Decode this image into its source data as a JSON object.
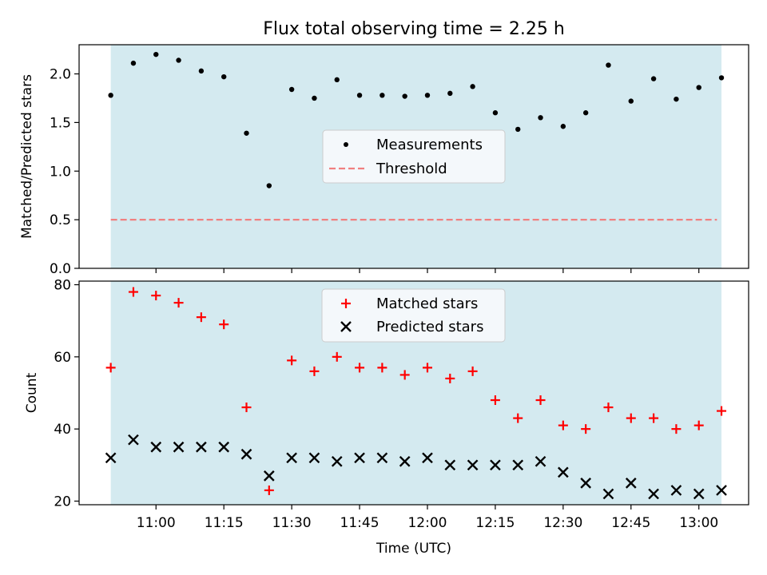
{
  "chart_data": [
    {
      "type": "scatter",
      "title": "Flux total observing time = 2.25 h",
      "ylabel": "Matched/Predicted stars",
      "xlabel": "",
      "ylim": [
        0,
        2.3
      ],
      "yticks": [
        0.0,
        0.5,
        1.0,
        1.5,
        2.0
      ],
      "ytick_labels": [
        "0.0",
        "0.5",
        "1.0",
        "1.5",
        "2.0"
      ],
      "xlim": [
        "10:43",
        "13:11"
      ],
      "xticks": [
        "11:00",
        "11:15",
        "11:30",
        "11:45",
        "12:00",
        "12:15",
        "12:30",
        "12:45",
        "13:00"
      ],
      "observing_window": [
        "10:50",
        "13:05"
      ],
      "legend_position": "center",
      "threshold": {
        "name": "Threshold",
        "value": 0.5,
        "color": "#f08080",
        "x_range": [
          "10:50",
          "13:04"
        ]
      },
      "series": [
        {
          "name": "Measurements",
          "color": "#000000",
          "marker": "dot",
          "x": [
            "10:50",
            "10:55",
            "11:00",
            "11:05",
            "11:10",
            "11:15",
            "11:20",
            "11:25",
            "11:30",
            "11:35",
            "11:40",
            "11:45",
            "11:50",
            "11:55",
            "12:00",
            "12:05",
            "12:10",
            "12:15",
            "12:20",
            "12:25",
            "12:30",
            "12:35",
            "12:40",
            "12:45",
            "12:50",
            "12:55",
            "13:00",
            "13:05"
          ],
          "y": [
            1.78,
            2.11,
            2.2,
            2.14,
            2.03,
            1.97,
            1.39,
            0.85,
            1.84,
            1.75,
            1.94,
            1.78,
            1.78,
            1.77,
            1.78,
            1.8,
            1.87,
            1.6,
            1.43,
            1.55,
            1.46,
            1.6,
            2.09,
            1.72,
            1.95,
            1.74,
            1.86,
            1.96
          ]
        }
      ]
    },
    {
      "type": "scatter",
      "title": "",
      "ylabel": "Count",
      "xlabel": "Time (UTC)",
      "ylim": [
        19,
        81
      ],
      "yticks": [
        20,
        40,
        60,
        80
      ],
      "ytick_labels": [
        "20",
        "40",
        "60",
        "80"
      ],
      "xlim": [
        "10:43",
        "13:11"
      ],
      "xticks": [
        "11:00",
        "11:15",
        "11:30",
        "11:45",
        "12:00",
        "12:15",
        "12:30",
        "12:45",
        "13:00"
      ],
      "observing_window": [
        "10:50",
        "13:05"
      ],
      "legend_position": "upper center",
      "series": [
        {
          "name": "Matched stars",
          "color": "#ff0000",
          "marker": "plus",
          "x": [
            "10:50",
            "10:55",
            "11:00",
            "11:05",
            "11:10",
            "11:15",
            "11:20",
            "11:25",
            "11:30",
            "11:35",
            "11:40",
            "11:45",
            "11:50",
            "11:55",
            "12:00",
            "12:05",
            "12:10",
            "12:15",
            "12:20",
            "12:25",
            "12:30",
            "12:35",
            "12:40",
            "12:45",
            "12:50",
            "12:55",
            "13:00",
            "13:05"
          ],
          "y": [
            57,
            78,
            77,
            75,
            71,
            69,
            46,
            23,
            59,
            56,
            60,
            57,
            57,
            55,
            57,
            54,
            56,
            48,
            43,
            48,
            41,
            40,
            46,
            43,
            43,
            40,
            41,
            45
          ]
        },
        {
          "name": "Predicted stars",
          "color": "#000000",
          "marker": "x",
          "x": [
            "10:50",
            "10:55",
            "11:00",
            "11:05",
            "11:10",
            "11:15",
            "11:20",
            "11:25",
            "11:30",
            "11:35",
            "11:40",
            "11:45",
            "11:50",
            "11:55",
            "12:00",
            "12:05",
            "12:10",
            "12:15",
            "12:20",
            "12:25",
            "12:30",
            "12:35",
            "12:40",
            "12:45",
            "12:50",
            "12:55",
            "13:00",
            "13:05"
          ],
          "y": [
            32,
            37,
            35,
            35,
            35,
            35,
            33,
            27,
            32,
            32,
            31,
            32,
            32,
            31,
            32,
            30,
            30,
            30,
            30,
            31,
            28,
            25,
            22,
            25,
            22,
            23,
            22,
            23
          ]
        }
      ]
    }
  ],
  "colors": {
    "window_fill": "#d4eaf0",
    "frame": "#000000",
    "legend_bg": "#f4f8fb",
    "legend_border": "#cccccc"
  }
}
